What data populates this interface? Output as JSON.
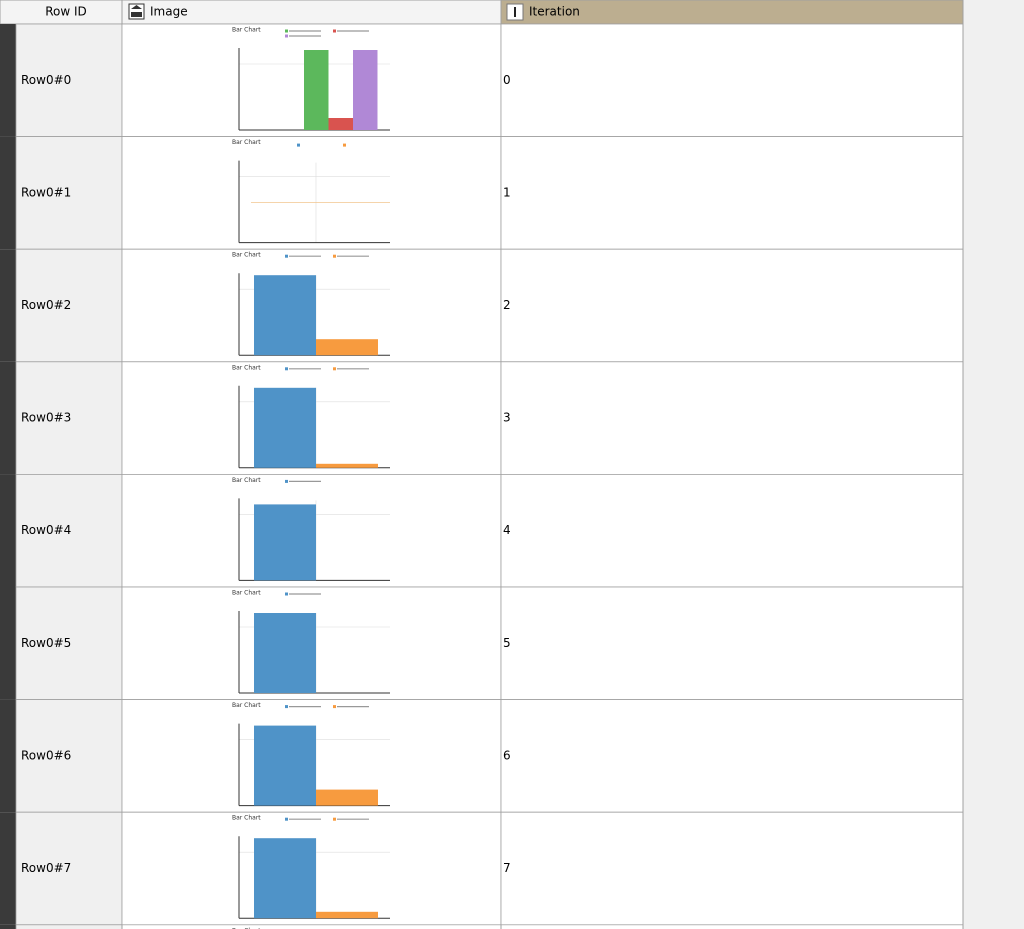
{
  "header": {
    "row_id": "Row ID",
    "image": "Image",
    "iteration": "Iteration"
  },
  "rows": [
    {
      "row_id": "Row0#0",
      "image": {
        "title": "Bar Chart",
        "bars": [
          {
            "color": "#5cb85c",
            "value": 1
          },
          {
            "color": "#d9534f",
            "value": 0.15
          },
          {
            "color": "#b088d6",
            "value": 1
          }
        ]
      },
      "iteration": 0
    },
    {
      "row_id": "Row0#1",
      "image": {
        "title": "Bar Chart",
        "bars": []
      },
      "iteration": 1
    },
    {
      "row_id": "Row0#2",
      "image": {
        "title": "Bar Chart",
        "bars": [
          {
            "color": "#4f93c8",
            "value": 1
          },
          {
            "color": "#f79b3f",
            "value": 0.2
          }
        ]
      },
      "iteration": 2
    },
    {
      "row_id": "Row0#3",
      "image": {
        "title": "Bar Chart",
        "bars": [
          {
            "color": "#4f93c8",
            "value": 1
          },
          {
            "color": "#f79b3f",
            "value": 0.05
          }
        ]
      },
      "iteration": 3
    },
    {
      "row_id": "Row0#4",
      "image": {
        "title": "Bar Chart",
        "bars": [
          {
            "color": "#4f93c8",
            "value": 0.95
          }
        ]
      },
      "iteration": 4
    },
    {
      "row_id": "Row0#5",
      "image": {
        "title": "Bar Chart",
        "bars": [
          {
            "color": "#4f93c8",
            "value": 1
          }
        ]
      },
      "iteration": 5
    },
    {
      "row_id": "Row0#6",
      "image": {
        "title": "Bar Chart",
        "bars": [
          {
            "color": "#4f93c8",
            "value": 1
          },
          {
            "color": "#f79b3f",
            "value": 0.2
          }
        ]
      },
      "iteration": 6
    },
    {
      "row_id": "Row0#7",
      "image": {
        "title": "Bar Chart",
        "bars": [
          {
            "color": "#4f93c8",
            "value": 1
          },
          {
            "color": "#f79b3f",
            "value": 0.08
          }
        ]
      },
      "iteration": 7
    }
  ],
  "partial_row": {
    "image": {
      "title": "Bar Chart"
    }
  }
}
